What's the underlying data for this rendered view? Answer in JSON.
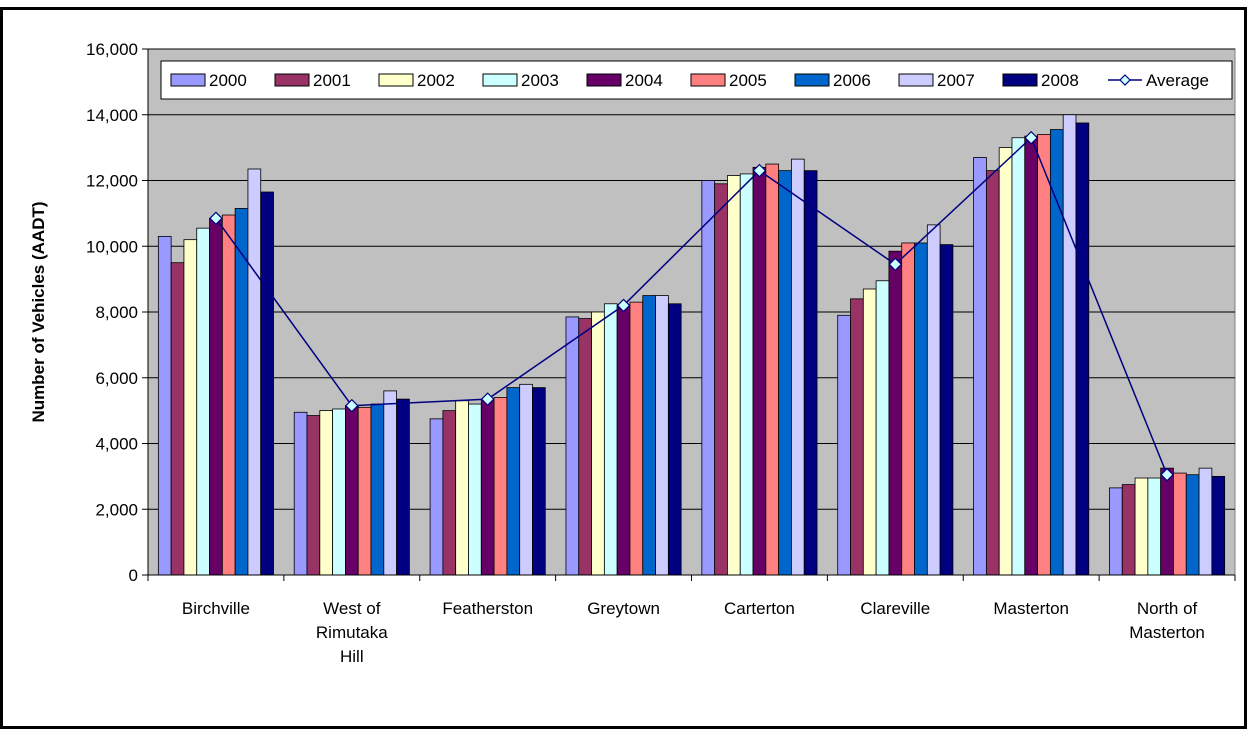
{
  "chart_data": {
    "type": "bar",
    "ylabel": "Number of Vehicles (AADT)",
    "xlabel": "",
    "ylim": [
      0,
      16000
    ],
    "ytick_step": 2000,
    "yticks": [
      "0",
      "2,000",
      "4,000",
      "6,000",
      "8,000",
      "10,000",
      "12,000",
      "14,000",
      "16,000"
    ],
    "grid": true,
    "legend_position": "top",
    "plot_background": "#c0c0c0",
    "categories": [
      [
        "Birchville"
      ],
      [
        "West of",
        "Rimutaka",
        "Hill"
      ],
      [
        "Featherston"
      ],
      [
        "Greytown"
      ],
      [
        "Carterton"
      ],
      [
        "Clareville"
      ],
      [
        "Masterton"
      ],
      [
        "North of",
        "Masterton"
      ]
    ],
    "series": [
      {
        "name": "2000",
        "color": "#9999ff",
        "values": [
          10300,
          4950,
          4750,
          7850,
          12000,
          7900,
          12700,
          2650
        ]
      },
      {
        "name": "2001",
        "color": "#993366",
        "values": [
          9500,
          4850,
          5000,
          7800,
          11900,
          8400,
          12300,
          2750
        ]
      },
      {
        "name": "2002",
        "color": "#ffffcc",
        "values": [
          10200,
          5000,
          5300,
          8000,
          12150,
          8700,
          13000,
          2950
        ]
      },
      {
        "name": "2003",
        "color": "#ccffff",
        "values": [
          10550,
          5050,
          5200,
          8250,
          12200,
          8950,
          13300,
          2950
        ]
      },
      {
        "name": "2004",
        "color": "#660066",
        "values": [
          10850,
          5150,
          5350,
          8200,
          12400,
          9850,
          13350,
          3250
        ]
      },
      {
        "name": "2005",
        "color": "#ff8080",
        "values": [
          10950,
          5100,
          5400,
          8300,
          12500,
          10100,
          13400,
          3100
        ]
      },
      {
        "name": "2006",
        "color": "#0066cc",
        "values": [
          11150,
          5200,
          5700,
          8500,
          12300,
          10100,
          13550,
          3050
        ]
      },
      {
        "name": "2007",
        "color": "#ccccff",
        "values": [
          12350,
          5600,
          5800,
          8500,
          12650,
          10650,
          14000,
          3250
        ]
      },
      {
        "name": "2008",
        "color": "#000080",
        "values": [
          11650,
          5350,
          5700,
          8250,
          12300,
          10050,
          13750,
          3000
        ]
      }
    ],
    "line_series": {
      "name": "Average",
      "color": "#000080",
      "marker_fill": "#ccffff",
      "values": [
        10850,
        5150,
        5350,
        8200,
        12300,
        9450,
        13300,
        3050
      ]
    }
  }
}
